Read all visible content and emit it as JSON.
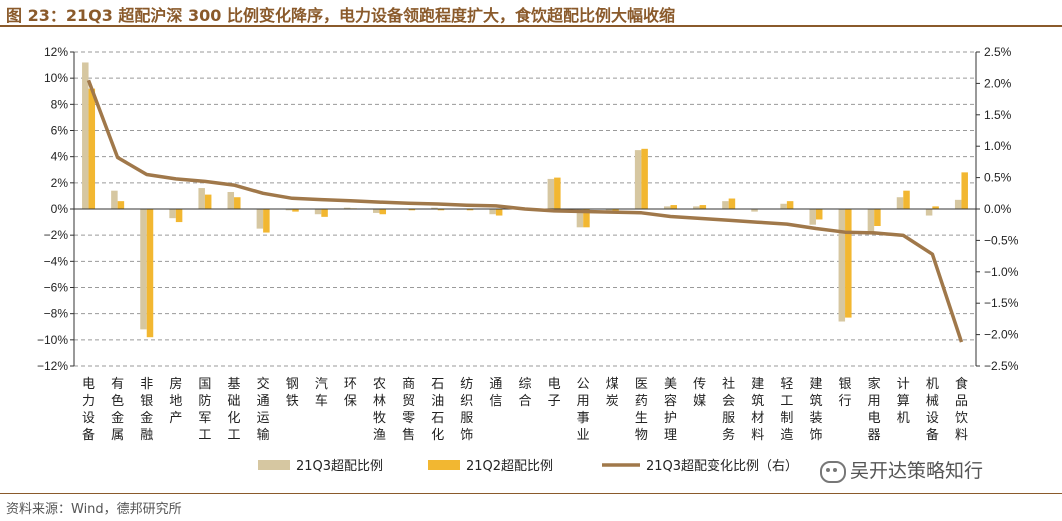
{
  "header": {
    "title": "图 23：21Q3 超配沪深 300 比例变化降序，电力设备领跑程度扩大，食饮超配比例大幅收缩"
  },
  "footer": {
    "source": "资料来源：Wind，德邦研究所",
    "watermark": "吴开达策略知行"
  },
  "colors": {
    "q3_bar": "#d6c7a1",
    "q2_bar": "#f2b731",
    "change_line": "#a0784a",
    "title": "#8a5a2b"
  },
  "chart_data": {
    "type": "bar",
    "categories": [
      "电力设备",
      "有色金属",
      "非银金融",
      "房地产",
      "国防军工",
      "基础化工",
      "交通运输",
      "钢铁",
      "汽车",
      "环保",
      "农林牧渔",
      "商贸零售",
      "石油石化",
      "纺织服饰",
      "通信",
      "综合",
      "电子",
      "公用事业",
      "煤炭",
      "医药生物",
      "美容护理",
      "传媒",
      "社会服务",
      "建筑材料",
      "轻工制造",
      "建筑装饰",
      "银行",
      "家用电器",
      "计算机",
      "机械设备",
      "食品饮料"
    ],
    "series": [
      {
        "name": "21Q3超配比例",
        "axis": "left",
        "values": [
          11.2,
          1.4,
          -9.2,
          -0.7,
          1.6,
          1.3,
          -1.5,
          -0.1,
          -0.4,
          0.1,
          -0.3,
          0.0,
          0.1,
          0.0,
          -0.4,
          0.0,
          2.3,
          -1.4,
          -0.1,
          4.5,
          0.2,
          0.2,
          0.6,
          -0.2,
          0.4,
          -1.2,
          -8.6,
          -1.8,
          0.9,
          -0.5,
          0.7
        ]
      },
      {
        "name": "21Q2超配比例",
        "axis": "left",
        "values": [
          9.2,
          0.6,
          -9.8,
          -1.0,
          1.1,
          0.9,
          -1.8,
          -0.2,
          -0.6,
          0.05,
          -0.4,
          -0.1,
          -0.1,
          -0.1,
          -0.5,
          0.0,
          2.4,
          -1.4,
          -0.2,
          4.6,
          0.3,
          0.3,
          0.8,
          0.0,
          0.6,
          -0.8,
          -8.3,
          -1.3,
          1.4,
          0.2,
          2.8
        ]
      },
      {
        "name": "21Q3超配变化比例（右）",
        "type": "line",
        "axis": "right",
        "values": [
          2.05,
          0.82,
          0.55,
          0.48,
          0.44,
          0.38,
          0.25,
          0.17,
          0.15,
          0.13,
          0.11,
          0.09,
          0.08,
          0.06,
          0.05,
          0.0,
          -0.03,
          -0.04,
          -0.05,
          -0.06,
          -0.12,
          -0.15,
          -0.18,
          -0.21,
          -0.24,
          -0.31,
          -0.37,
          -0.38,
          -0.42,
          -0.72,
          -2.12
        ]
      }
    ],
    "left_axis": {
      "min": -12,
      "max": 12,
      "step": 2,
      "ticks": [
        "12%",
        "10%",
        "8%",
        "6%",
        "4%",
        "2%",
        "0%",
        "−2%",
        "−4%",
        "−6%",
        "−8%",
        "−10%",
        "−12%"
      ]
    },
    "right_axis": {
      "min": -2.5,
      "max": 2.5,
      "step": 0.5,
      "ticks": [
        "2.5%",
        "2.0%",
        "1.5%",
        "1.0%",
        "0.5%",
        "0.0%",
        "−0.5%",
        "−1.0%",
        "−1.5%",
        "−2.0%",
        "−2.5%"
      ]
    },
    "grid": "horizontal-dashed",
    "legend_position": "bottom"
  }
}
